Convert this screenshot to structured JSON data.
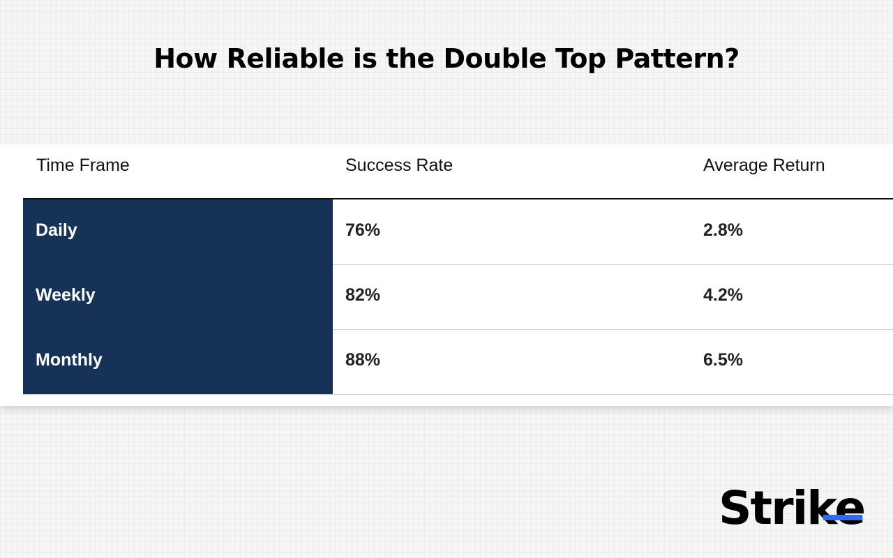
{
  "header": {
    "title": "How Reliable is the Double Top Pattern?"
  },
  "table": {
    "columns": [
      "Time Frame",
      "Success Rate",
      "Average Return"
    ],
    "rows": [
      [
        "Daily",
        "76%",
        "2.8%"
      ],
      [
        "Weekly",
        "82%",
        "4.2%"
      ],
      [
        "Monthly",
        "88%",
        "6.5%"
      ]
    ]
  },
  "brand": "Strike"
}
